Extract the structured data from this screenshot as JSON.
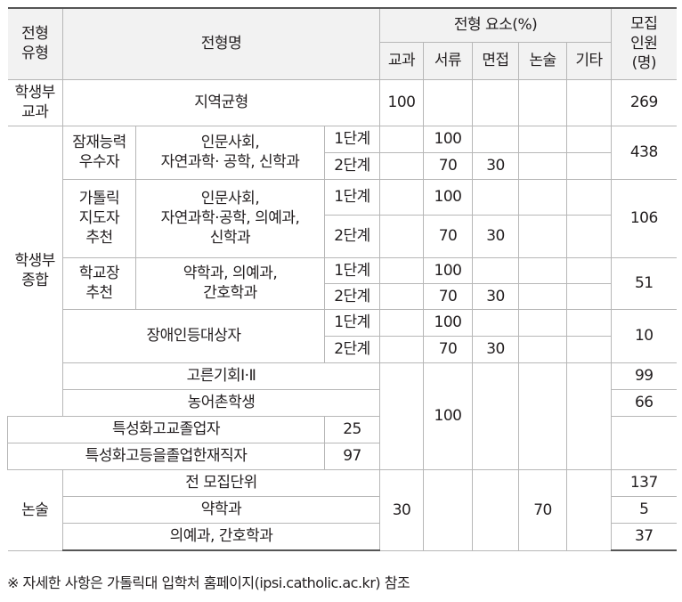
{
  "header": {
    "type": "전형\n유형",
    "name": "전형명",
    "elements": "전형 요소(%)",
    "gyogwa": "교과",
    "seoryu": "서류",
    "myeonjeop": "면접",
    "nonsul": "논술",
    "gita": "기타",
    "count": "모집\n인원\n(명)"
  },
  "row_jiyeok": {
    "type": "학생부\n교과",
    "name": "지역균형",
    "gyogwa": "100",
    "count": "269"
  },
  "jonghap_type": "학생부\n종합",
  "stage1": "1단계",
  "stage2": "2단계",
  "row_jamjae": {
    "cat": "잠재능력\n우수자",
    "name": "인문사회,\n자연과학· 공학, 신학과",
    "s1_seoryu": "100",
    "s2_seoryu": "70",
    "s2_myeonjeop": "30",
    "count": "438"
  },
  "row_catholic": {
    "cat": "가톨릭\n지도자\n추천",
    "name": "인문사회,\n자연과학·공학, 의예과,\n신학과",
    "s1_seoryu": "100",
    "s2_seoryu": "70",
    "s2_myeonjeop": "30",
    "count": "106"
  },
  "row_school": {
    "cat": "학교장\n추천",
    "name": "약학과, 의예과,\n간호학과",
    "s1_seoryu": "100",
    "s2_seoryu": "70",
    "s2_myeonjeop": "30",
    "count": "51"
  },
  "row_disabled": {
    "name": "장애인등대상자",
    "s1_seoryu": "100",
    "s2_seoryu": "70",
    "s2_myeonjeop": "30",
    "count": "10"
  },
  "row_goreun": {
    "name": "고른기회Ⅰ·Ⅱ",
    "count": "99"
  },
  "row_nongeo": {
    "name": "농어촌학생",
    "count": "66"
  },
  "row_teukgo": {
    "name": "특성화고교졸업자",
    "count": "25"
  },
  "row_teukjae": {
    "name": "특성화고등을졸업한재직자",
    "count": "97"
  },
  "group_seoryu": "100",
  "nonsul_section": {
    "type": "논술",
    "gyogwa": "30",
    "nonsul": "70",
    "rows": [
      {
        "name": "전 모집단위",
        "count": "137"
      },
      {
        "name": "약학과",
        "count": "5"
      },
      {
        "name": "의예과, 간호학과",
        "count": "37"
      }
    ]
  },
  "footnote": "※ 자세한 사항은 가톨릭대 입학처 홈페이지(ipsi.catholic.ac.kr) 참조"
}
